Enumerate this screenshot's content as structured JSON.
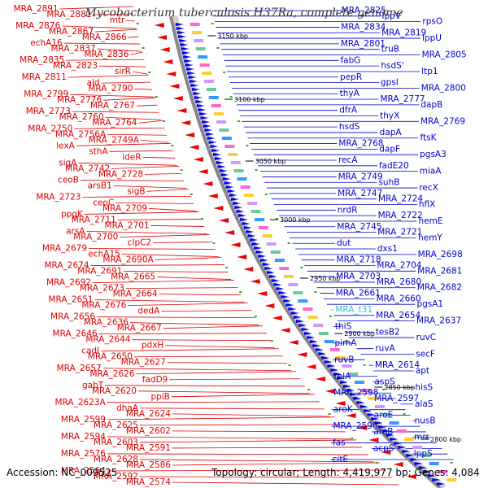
{
  "title": "Mycobacterium tuberculosis H37Ra, complete genome",
  "footer": {
    "accession": "Accession: NC_009525",
    "topology": "Topology: circular; Length: 4,419,977 bp; Genes: 4,084"
  },
  "colors": {
    "left_label": "#dd0000",
    "right_label": "#0000cc",
    "highlight_label": "#33bbdd",
    "backbone": "#888888",
    "forward_feature": "#0000ee",
    "reverse_feature": "#ee0000"
  },
  "scale_ticks": [
    "3150 kbp",
    "3100 kbp",
    "3050 kbp",
    "3000 kbp",
    "2950 kbp",
    "2900 kbp",
    "2850 kbp",
    "2800 kbp"
  ],
  "left_labels": [
    "MRA_2891",
    "MRA_2881",
    "mtr",
    "MRA_2876",
    "MRA_2867",
    "MRA_2866",
    "echA16",
    "MRA_2837",
    "MRA_2836",
    "MRA_2835",
    "MRA_2823",
    "sirR",
    "MRA_2811",
    "ald",
    "MRA_2790",
    "MRA_2799",
    "MRA_2776",
    "MRA_2767",
    "MRA_2773",
    "MRA_2760",
    "MRA_2764",
    "MRA_2750",
    "MRA_2756A",
    "MRA_2749A",
    "lexA",
    "sthA",
    "ideR",
    "sigA",
    "MRA_2742",
    "MRA_2728",
    "ceoB",
    "arsB1",
    "sigB",
    "MRA_2723",
    "ceoC",
    "MRA_2709",
    "ppgK",
    "MRA_2711",
    "MRA_2701",
    "arsA",
    "MRA_2700",
    "clpC2",
    "MRA_2679",
    "echA15",
    "MRA_2690A",
    "MRA_2674",
    "MRA_2691",
    "MRA_2665",
    "MRA_2692",
    "MRA_2673",
    "MRA_2664",
    "MRA_2651",
    "MRA_2676",
    "dedA",
    "MRA_2656",
    "MRA_2636",
    "MRA_2667",
    "MRA_2646",
    "MRA_2644",
    "pdxH",
    "cadI",
    "MRA_2650",
    "MRA_2627",
    "MRA_2657",
    "MRA_2626",
    "fadD9",
    "gabT",
    "MRA_2620",
    "ppiB",
    "MRA_2623A",
    "dhaA",
    "MRA_2624",
    "MRA_2599",
    "MRA_2625",
    "MRA_2602",
    "MRA_2594",
    "MRA_2603",
    "MRA_2591",
    "MRA_2576",
    "MRA_2628",
    "MRA_2586",
    "MRA_2564",
    "MRA_2592",
    "MRA_2574"
  ],
  "right_labels": [
    "MRA_2825",
    "lppV",
    "rpsO",
    "MRA_2834",
    "MRA_2819",
    "lppU",
    "MRA_2801",
    "truB",
    "MRA_2805",
    "fabG",
    "hsdS'",
    "ltp1",
    "pepR",
    "gpsI",
    "MRA_2800",
    "thyA",
    "MRA_2777",
    "dapB",
    "dfrA",
    "thyX",
    "MRA_2769",
    "hsdS",
    "dapA",
    "ftsK",
    "MRA_2768",
    "dapF",
    "pgsA3",
    "recA",
    "fadE20",
    "miaA",
    "MRA_2749",
    "suhB",
    "recX",
    "MRA_2747",
    "MRA_2724",
    "hflX",
    "nrdR",
    "MRA_2722",
    "hemE",
    "MRA_2745",
    "MRA_2721",
    "hemY",
    "dut",
    "dxs1",
    "MRA_2698",
    "MRA_2718",
    "MRA_2704",
    "MRA_2681",
    "MRA_2703",
    "MRA_2680",
    "MRA_2682",
    "MRA_2661",
    "MRA_2660",
    "pgsA1",
    "MRA_t31",
    "MRA_2654",
    "MRA_2637",
    "thiS",
    "tesB2",
    "ruvC",
    "pimA",
    "ruvA",
    "secF",
    "ruvB",
    "MRA_2614",
    "apt",
    "relA",
    "aspS",
    "hisS",
    "MRA_2598",
    "MRA_2597",
    "alaS",
    "aroK",
    "aroE",
    "nusB",
    "MRA_2590",
    "aroB",
    "mrr",
    "fas",
    "acpS",
    "lppS",
    "citE"
  ]
}
